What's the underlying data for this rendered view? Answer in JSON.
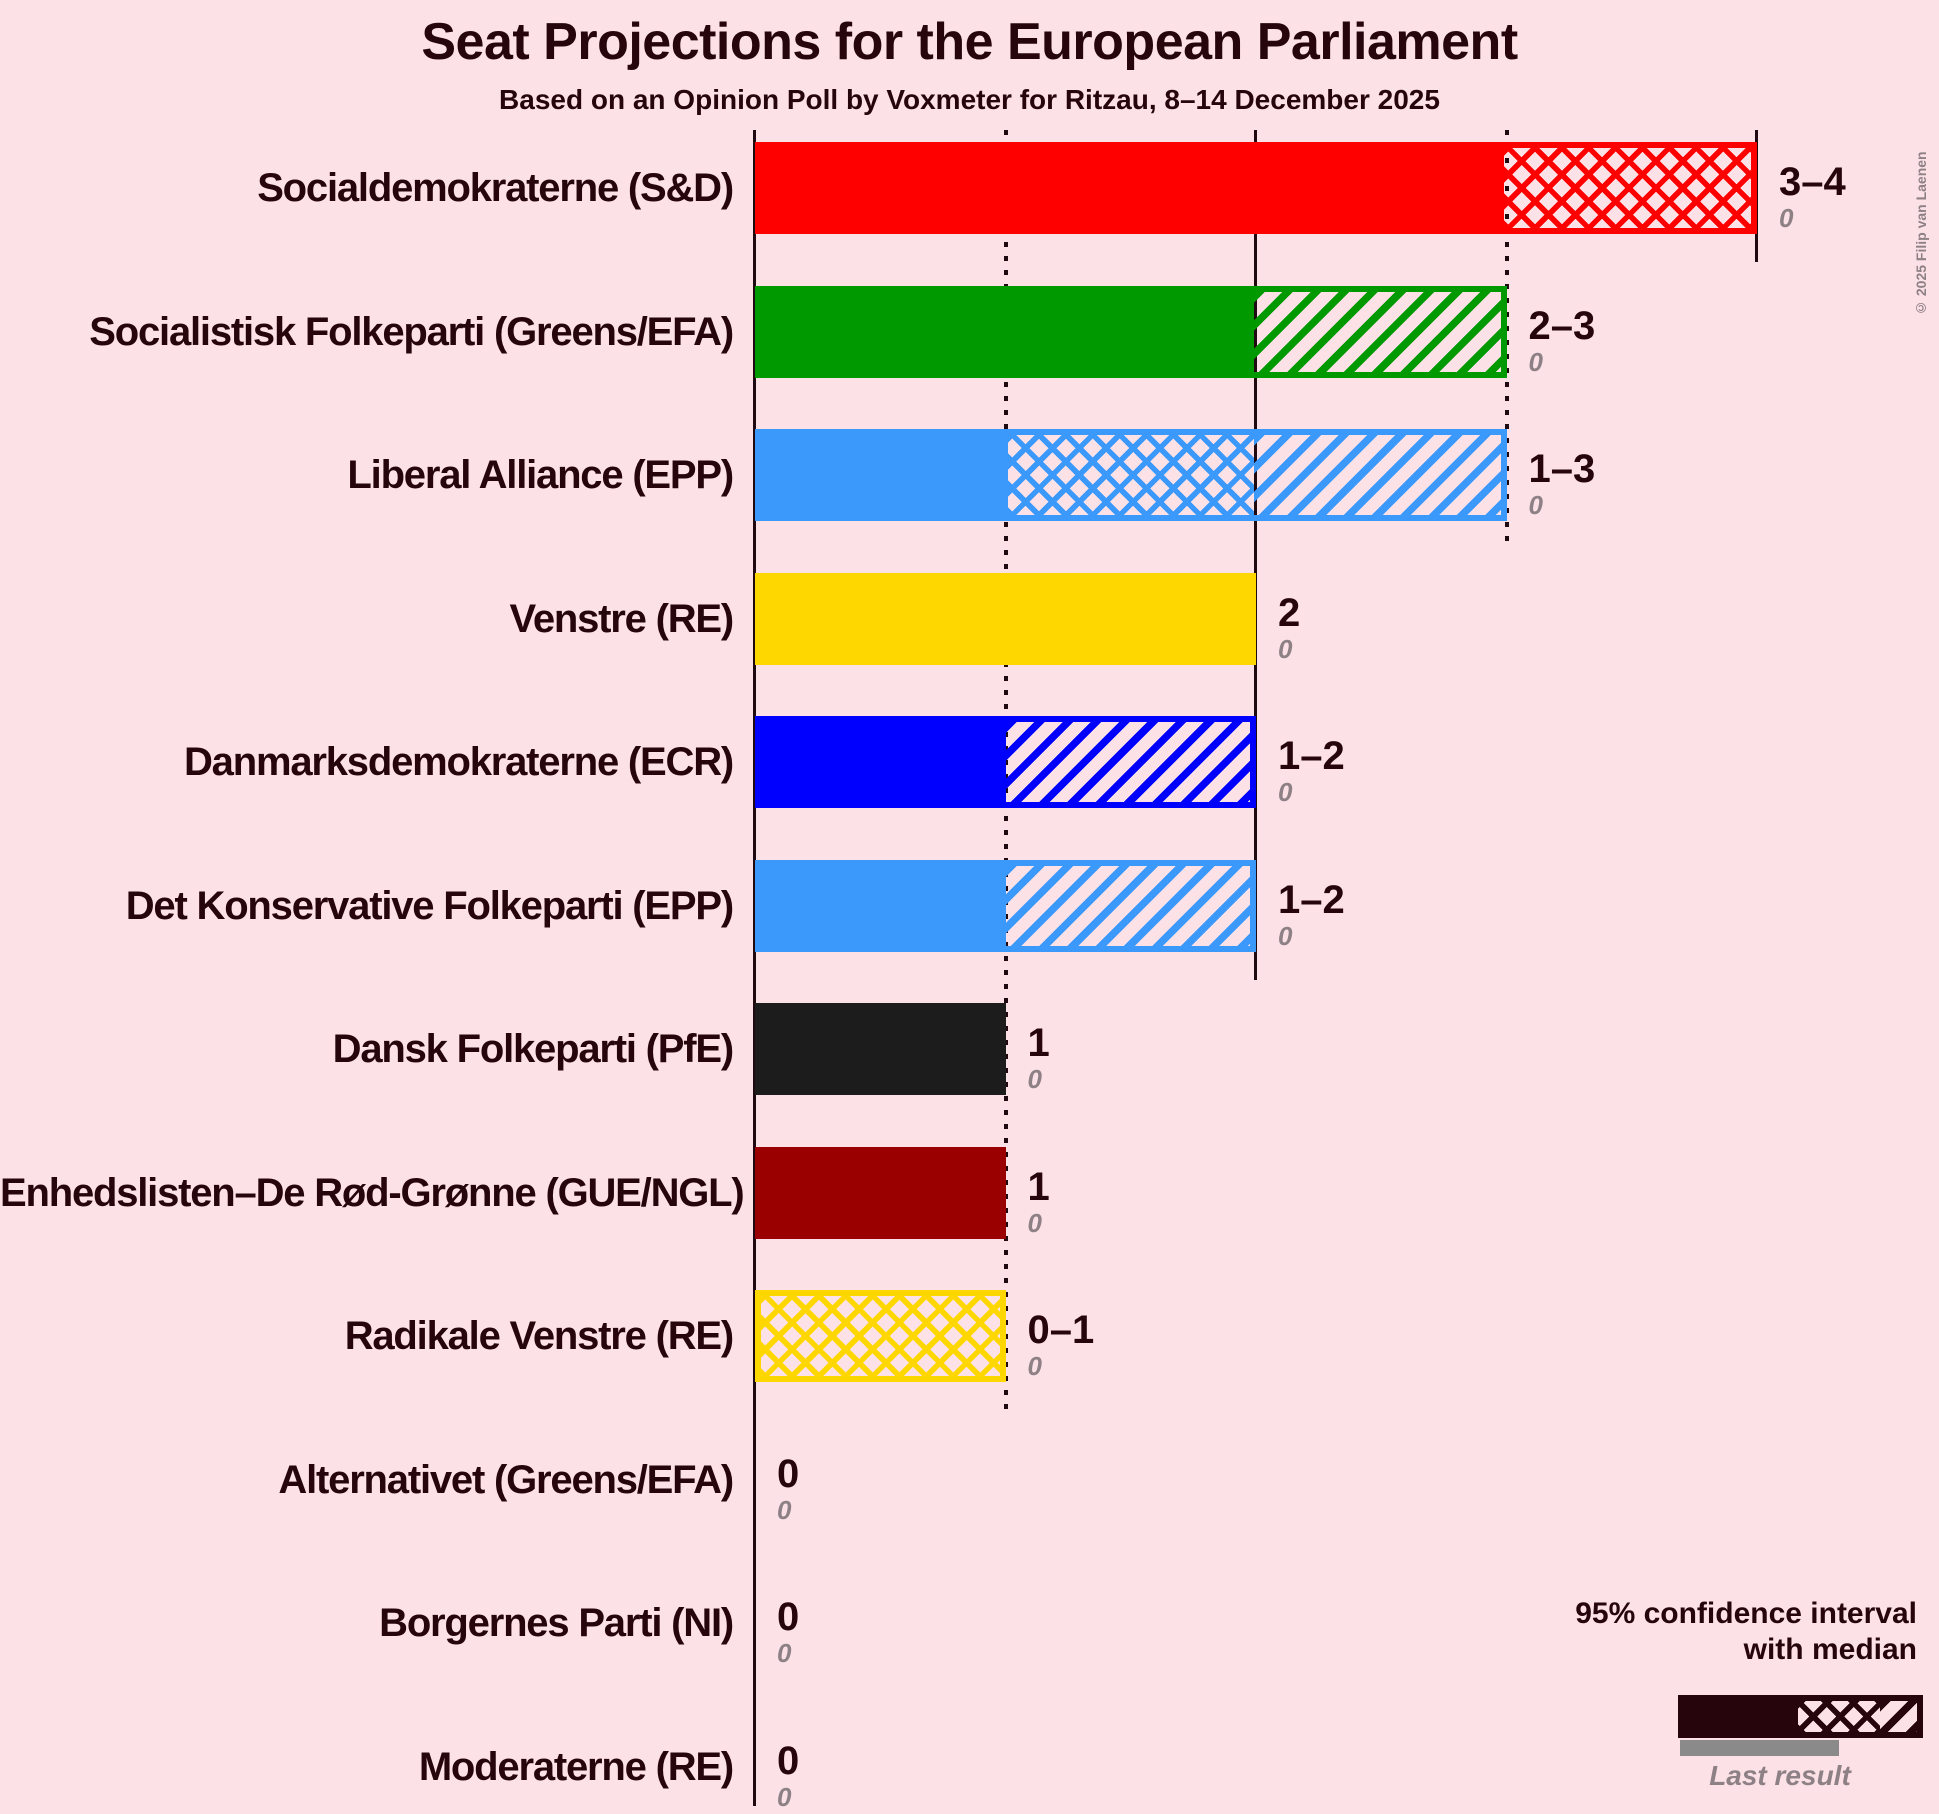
{
  "title": "Seat Projections for the European Parliament",
  "subtitle": "Based on an Opinion Poll by Voxmeter for Ritzau, 8–14 December 2025",
  "copyright": "© 2025 Filip van Laenen",
  "legend": {
    "line1": "95% confidence interval",
    "line2": "with median",
    "last_result": "Last result"
  },
  "colors": {
    "background": "#FCE1E7",
    "text_dark": "#26060C",
    "text_gray": "#8E8186",
    "gridline": "#1E0A10",
    "legend_bar": "#26060C",
    "legend_last_result_bar": "#8A8A8A"
  },
  "chart_data": {
    "type": "bar",
    "orientation": "horizontal",
    "title": "Seat Projections for the European Parliament",
    "subtitle": "Based on an Opinion Poll by Voxmeter for Ritzau, 8–14 December 2025",
    "unit": "seats",
    "x_axis": {
      "min": 0,
      "max": 4,
      "gridline_values": [
        0,
        1,
        2,
        3,
        4
      ],
      "solid_values": [
        0,
        2,
        4
      ],
      "dotted_values": [
        1,
        3
      ],
      "tick_labels_visible": false
    },
    "legend_note": "solid = up to CI lower bound, crosshatch = lower bound to median, diagonal hatch = median to upper bound",
    "parties": [
      {
        "name": "Socialdemokraterne (S&D)",
        "color": "#FF0000",
        "ci_low": 3,
        "median": 4,
        "ci_high": 4,
        "seat_label": "3–4",
        "last_result": 0,
        "last_result_label": "0"
      },
      {
        "name": "Socialistisk Folkeparti (Greens/EFA)",
        "color": "#009900",
        "ci_low": 2,
        "median": 2,
        "ci_high": 3,
        "seat_label": "2–3",
        "last_result": 0,
        "last_result_label": "0"
      },
      {
        "name": "Liberal Alliance (EPP)",
        "color": "#3B99FC",
        "ci_low": 1,
        "median": 2,
        "ci_high": 3,
        "seat_label": "1–3",
        "last_result": 0,
        "last_result_label": "0"
      },
      {
        "name": "Venstre (RE)",
        "color": "#FFD700",
        "ci_low": 2,
        "median": 2,
        "ci_high": 2,
        "seat_label": "2",
        "last_result": 0,
        "last_result_label": "0"
      },
      {
        "name": "Danmarksdemokraterne (ECR)",
        "color": "#0000FF",
        "ci_low": 1,
        "median": 1,
        "ci_high": 2,
        "seat_label": "1–2",
        "last_result": 0,
        "last_result_label": "0"
      },
      {
        "name": "Det Konservative Folkeparti (EPP)",
        "color": "#3B99FC",
        "ci_low": 1,
        "median": 1,
        "ci_high": 2,
        "seat_label": "1–2",
        "last_result": 0,
        "last_result_label": "0"
      },
      {
        "name": "Dansk Folkeparti (PfE)",
        "color": "#1C1C1C",
        "ci_low": 1,
        "median": 1,
        "ci_high": 1,
        "seat_label": "1",
        "last_result": 0,
        "last_result_label": "0"
      },
      {
        "name": "Enhedslisten–De Rød-Grønne (GUE/NGL)",
        "color": "#9B0000",
        "ci_low": 1,
        "median": 1,
        "ci_high": 1,
        "seat_label": "1",
        "last_result": 0,
        "last_result_label": "0"
      },
      {
        "name": "Radikale Venstre (RE)",
        "color": "#FFD700",
        "ci_low": 0,
        "median": 1,
        "ci_high": 1,
        "seat_label": "0–1",
        "last_result": 0,
        "last_result_label": "0"
      },
      {
        "name": "Alternativet (Greens/EFA)",
        "color": "#009900",
        "ci_low": 0,
        "median": 0,
        "ci_high": 0,
        "seat_label": "0",
        "last_result": 0,
        "last_result_label": "0"
      },
      {
        "name": "Borgernes Parti (NI)",
        "color": "#1C1C1C",
        "ci_low": 0,
        "median": 0,
        "ci_high": 0,
        "seat_label": "0",
        "last_result": 0,
        "last_result_label": "0"
      },
      {
        "name": "Moderaterne (RE)",
        "color": "#9B59B6",
        "ci_low": 0,
        "median": 0,
        "ci_high": 0,
        "seat_label": "0",
        "last_result": 0,
        "last_result_label": "0"
      }
    ]
  }
}
